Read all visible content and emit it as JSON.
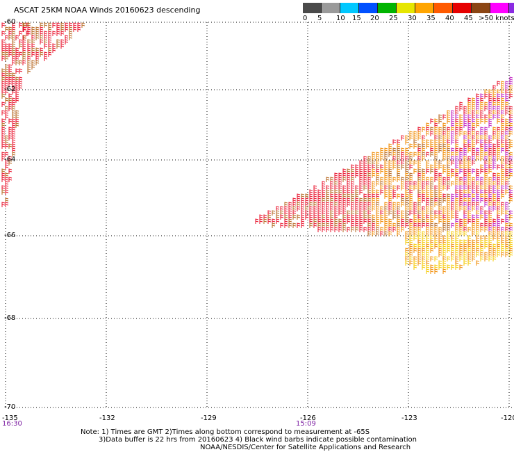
{
  "title": "ASCAT 25KM NOAA Winds 20160623 descending",
  "legend": {
    "colors": [
      "#4a4a4a",
      "#9a9a9a",
      "#00c8ff",
      "#0050ff",
      "#00b400",
      "#e6e600",
      "#ffa500",
      "#ff5a00",
      "#e60000",
      "#8b4513",
      "#ff00ff",
      "#8a2be2"
    ],
    "labels": [
      "0",
      "5",
      "10",
      "15",
      "20",
      "25",
      "30",
      "35",
      "40",
      "45",
      ">50 knots"
    ]
  },
  "axes": {
    "lat_labels": [
      "-60",
      "-62",
      "-64",
      "-66",
      "-68",
      "-70"
    ],
    "lon_labels": [
      "-135",
      "-132",
      "-129",
      "-126",
      "-123",
      "-120"
    ],
    "time_labels": [
      "16:30",
      "15:09"
    ]
  },
  "barb_colors": {
    "red": "#e8102a",
    "brown": "#b5651d",
    "orange": "#f08a00",
    "yellow": "#f5c800",
    "purple": "#c020c0"
  },
  "notes": {
    "line1": "Note: 1) Times are GMT 2)Times along bottom correspond to measurement at -65S",
    "line2": "3)Data buffer is 22 hrs from 20160623 4) Black wind barbs indicate possible contamination",
    "line3": "NOAA/NESDIS/Center for Satellite Applications and Research"
  }
}
